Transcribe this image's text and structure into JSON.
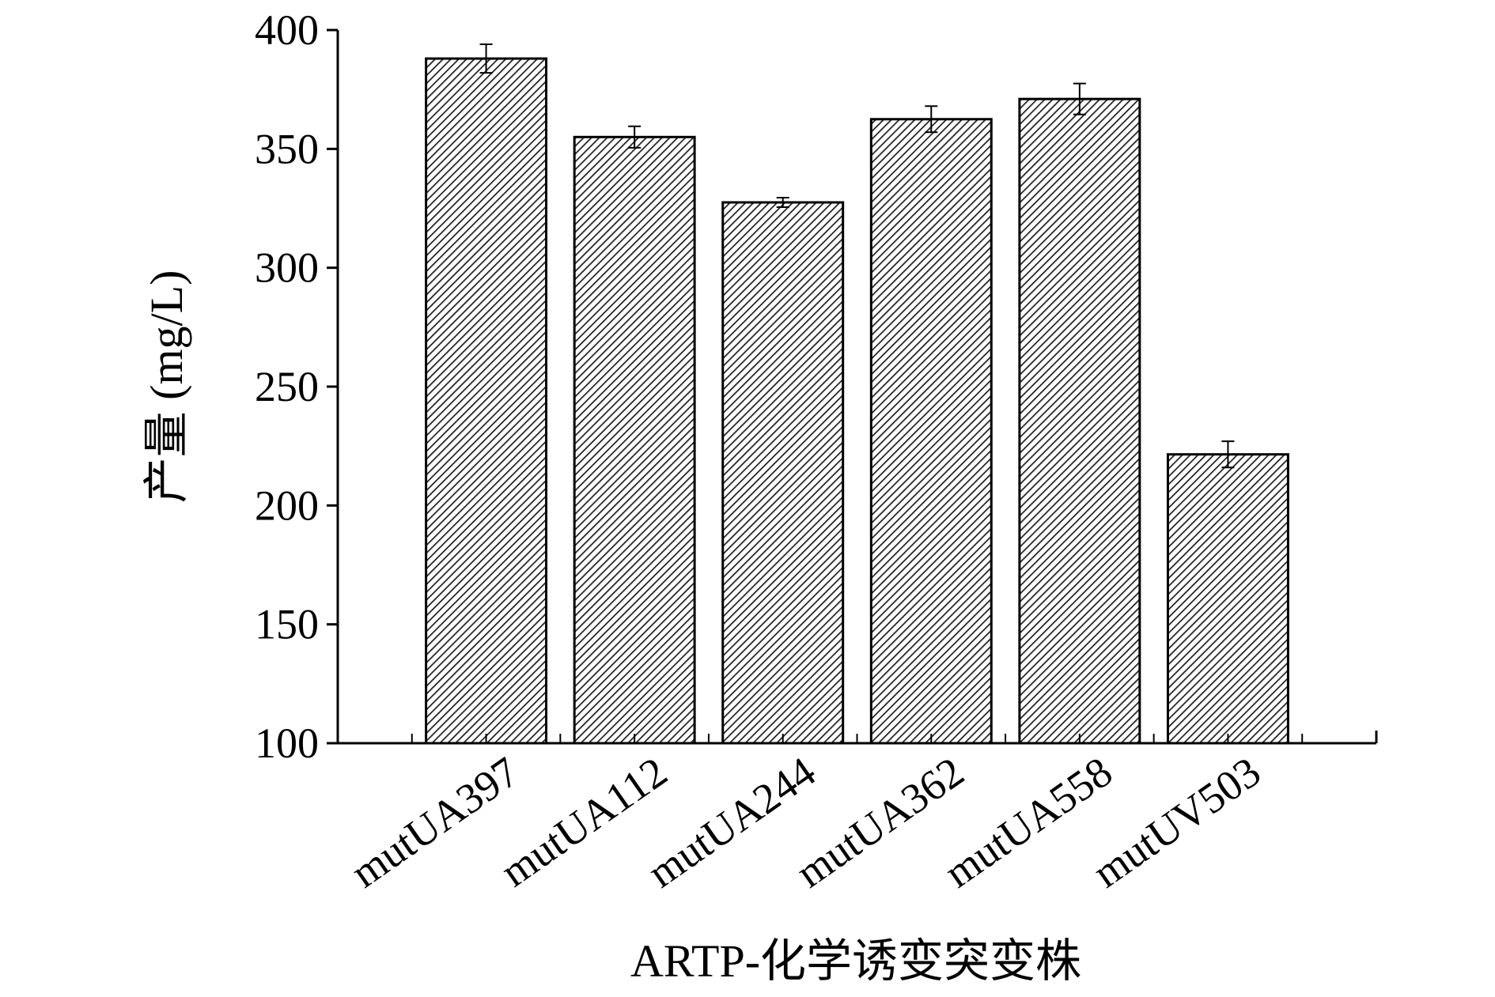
{
  "chart_data": {
    "type": "bar",
    "x_label": "ARTP-化学诱变突变株",
    "y_label": "产量 (mg/L)",
    "categories": [
      "mutUA397",
      "mutUA112",
      "mutUA244",
      "mutUA362",
      "mutUA558",
      "mutUV503"
    ],
    "values": [
      388,
      355,
      327.5,
      362.5,
      371,
      221.5
    ],
    "errors": [
      6,
      4.5,
      2,
      5.5,
      6.5,
      5.5
    ],
    "color": "#000000",
    "ylim": [
      100,
      400
    ],
    "yticks": [
      100,
      150,
      200,
      250,
      300,
      350,
      400
    ],
    "grid": false
  }
}
